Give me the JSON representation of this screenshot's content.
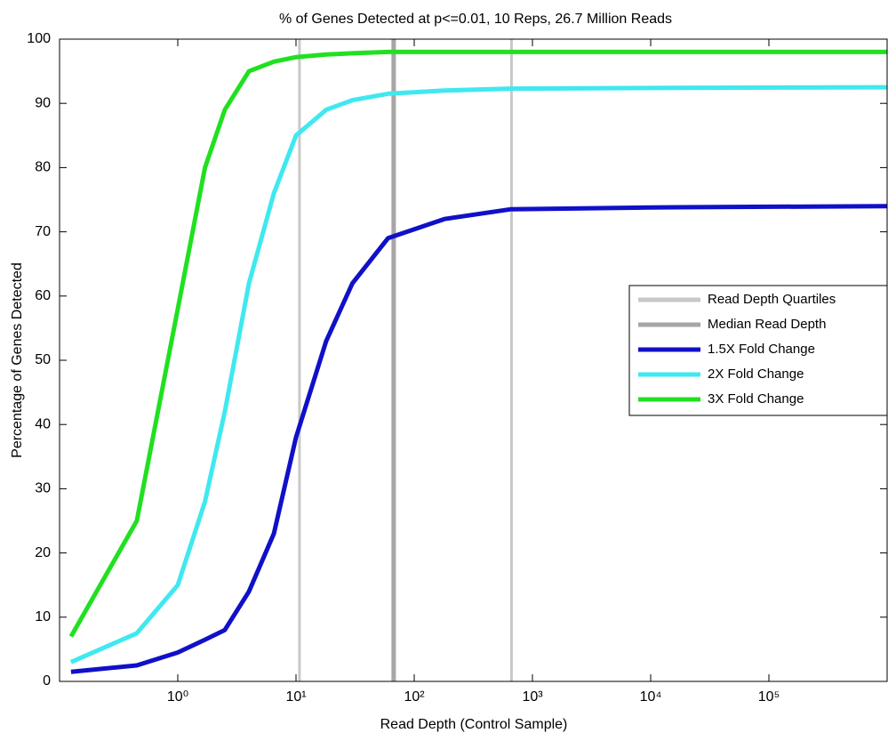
{
  "chart_data": {
    "type": "line",
    "title": "% of Genes Detected at p<=0.01, 10 Reps, 26.7 Million Reads",
    "xlabel": "Read Depth (Control Sample)",
    "ylabel": "Percentage of Genes Detected",
    "xscale": "log",
    "xlim": [
      0.1,
      1000000
    ],
    "ylim": [
      0,
      100
    ],
    "xticks": [
      {
        "value": 1,
        "label": "10⁰"
      },
      {
        "value": 10,
        "label": "10¹"
      },
      {
        "value": 100,
        "label": "10²"
      },
      {
        "value": 1000,
        "label": "10³"
      },
      {
        "value": 10000,
        "label": "10⁴"
      },
      {
        "value": 100000,
        "label": "10⁵"
      }
    ],
    "yticks": [
      0,
      10,
      20,
      30,
      40,
      50,
      60,
      70,
      80,
      90,
      100
    ],
    "legend": "east",
    "reference_lines": [
      {
        "name": "Read Depth Quartiles",
        "color": "#c8c8c8",
        "x": [
          10.7,
          665
        ]
      },
      {
        "name": "Median Read Depth",
        "color": "#a6a6a6",
        "x": [
          67
        ]
      }
    ],
    "x": [
      0.125,
      0.45,
      1,
      1.7,
      2.5,
      4,
      6.5,
      10,
      18,
      30,
      60,
      180,
      650,
      10000,
      1000000
    ],
    "series": [
      {
        "name": "1.5X Fold Change",
        "color": "#1010c8",
        "values": [
          1.5,
          2.5,
          4.5,
          6.5,
          8,
          14,
          23,
          38,
          53,
          62,
          69,
          72,
          73.5,
          73.8,
          74
        ]
      },
      {
        "name": "2X Fold Change",
        "color": "#40e8f0",
        "values": [
          3,
          7.5,
          15,
          28,
          42,
          62,
          76,
          85,
          89,
          90.5,
          91.5,
          92,
          92.3,
          92.4,
          92.5
        ]
      },
      {
        "name": "3X Fold Change",
        "color": "#20e020",
        "values": [
          7,
          25,
          58,
          80,
          89,
          95,
          96.5,
          97.2,
          97.6,
          97.8,
          98,
          98,
          98,
          98,
          98
        ]
      }
    ]
  }
}
